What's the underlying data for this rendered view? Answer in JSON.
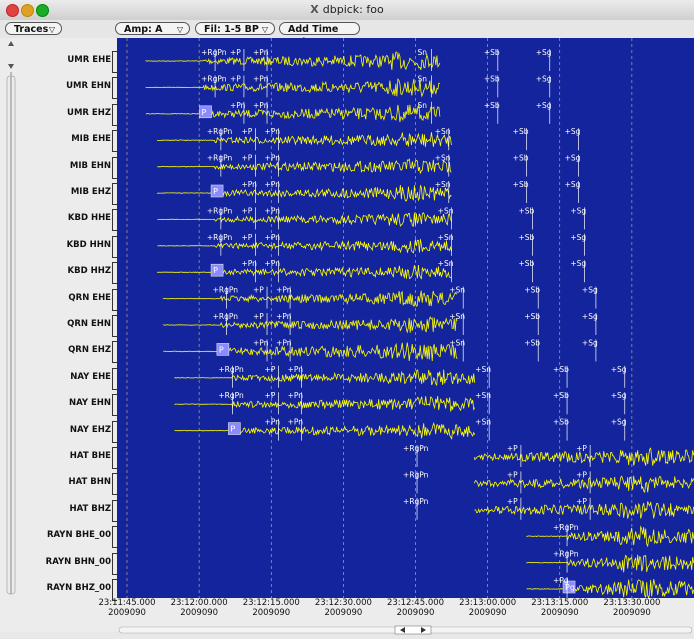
{
  "window": {
    "title": "dbpick: foo",
    "x11_glyph": "X"
  },
  "toolbar": {
    "traces_label": "Traces",
    "amp_label": "Amp: A",
    "fil_label": "Fil: 1-5 BP",
    "add_time_mark_label": "Add Time Mrk"
  },
  "colors": {
    "plot_bg": "#13249c",
    "trace": "#ffff00",
    "pick_flag": "#ffffff",
    "pick_p_box": "#8b8bff"
  },
  "channels": [
    {
      "label": "UMR EHE",
      "start": 0.05,
      "end": 0.56,
      "p": 0.15,
      "burst": 0.5,
      "amp": 1.0,
      "picks": [
        {
          "t": "+RgPn",
          "x": 0.17
        },
        {
          "t": "+P",
          "x": 0.22
        },
        {
          "t": "+Pn",
          "x": 0.26
        },
        {
          "t": "Sn",
          "x": 0.545
        },
        {
          "t": "+Sb",
          "x": 0.66
        },
        {
          "t": "+Sg",
          "x": 0.75
        }
      ]
    },
    {
      "label": "UMR EHN",
      "start": 0.05,
      "end": 0.56,
      "p": 0.15,
      "burst": 0.5,
      "amp": 1.0,
      "picks": [
        {
          "t": "+RgPn",
          "x": 0.17
        },
        {
          "t": "+P",
          "x": 0.22
        },
        {
          "t": "+Pn",
          "x": 0.26
        },
        {
          "t": "Sn",
          "x": 0.545
        },
        {
          "t": "+Sb",
          "x": 0.66
        },
        {
          "t": "+Sg",
          "x": 0.75
        }
      ]
    },
    {
      "label": "UMR EHZ",
      "start": 0.05,
      "end": 0.56,
      "p": 0.15,
      "burst": 0.5,
      "amp": 1.0,
      "box": "P",
      "picks": [
        {
          "t": "+Pn",
          "x": 0.22
        },
        {
          "t": "+Pn",
          "x": 0.26
        },
        {
          "t": "Sn",
          "x": 0.545
        },
        {
          "t": "+Sb",
          "x": 0.66
        },
        {
          "t": "+Sg",
          "x": 0.75
        }
      ]
    },
    {
      "label": "MIB EHE",
      "start": 0.07,
      "end": 0.58,
      "p": 0.17,
      "burst": 0.52,
      "amp": 0.9,
      "picks": [
        {
          "t": "+RgPn",
          "x": 0.18
        },
        {
          "t": "+P",
          "x": 0.24
        },
        {
          "t": "+Pn",
          "x": 0.28
        },
        {
          "t": "+Sn",
          "x": 0.575
        },
        {
          "t": "+Sb",
          "x": 0.71
        },
        {
          "t": "+Sg",
          "x": 0.8
        }
      ]
    },
    {
      "label": "MIB EHN",
      "start": 0.07,
      "end": 0.58,
      "p": 0.17,
      "burst": 0.52,
      "amp": 0.9,
      "picks": [
        {
          "t": "+RgPn",
          "x": 0.18
        },
        {
          "t": "+P",
          "x": 0.24
        },
        {
          "t": "+Pn",
          "x": 0.28
        },
        {
          "t": "+Sn",
          "x": 0.575
        },
        {
          "t": "+Sb",
          "x": 0.71
        },
        {
          "t": "+Sg",
          "x": 0.8
        }
      ]
    },
    {
      "label": "MIB EHZ",
      "start": 0.07,
      "end": 0.58,
      "p": 0.17,
      "burst": 0.52,
      "amp": 0.9,
      "box": "P",
      "picks": [
        {
          "t": "+Pn",
          "x": 0.24
        },
        {
          "t": "+Pn",
          "x": 0.28
        },
        {
          "t": "+Sn",
          "x": 0.575
        },
        {
          "t": "+Sb",
          "x": 0.71
        },
        {
          "t": "+Sg",
          "x": 0.8
        }
      ]
    },
    {
      "label": "KBD HHE",
      "start": 0.07,
      "end": 0.58,
      "p": 0.17,
      "burst": 0.5,
      "amp": 0.8,
      "picks": [
        {
          "t": "+RgPn",
          "x": 0.18
        },
        {
          "t": "+P",
          "x": 0.24
        },
        {
          "t": "+Pn",
          "x": 0.28
        },
        {
          "t": "+Sn",
          "x": 0.58
        },
        {
          "t": "+Sb",
          "x": 0.72
        },
        {
          "t": "+Sg",
          "x": 0.81
        }
      ]
    },
    {
      "label": "KBD HHN",
      "start": 0.07,
      "end": 0.58,
      "p": 0.17,
      "burst": 0.5,
      "amp": 0.8,
      "picks": [
        {
          "t": "+RgPn",
          "x": 0.18
        },
        {
          "t": "+P",
          "x": 0.24
        },
        {
          "t": "+Pn",
          "x": 0.28
        },
        {
          "t": "+Sn",
          "x": 0.58
        },
        {
          "t": "+Sb",
          "x": 0.72
        },
        {
          "t": "+Sg",
          "x": 0.81
        }
      ]
    },
    {
      "label": "KBD HHZ",
      "start": 0.07,
      "end": 0.58,
      "p": 0.17,
      "burst": 0.5,
      "amp": 0.8,
      "box": "P",
      "picks": [
        {
          "t": "+Pn",
          "x": 0.24
        },
        {
          "t": "+Pn",
          "x": 0.28
        },
        {
          "t": "+Sn",
          "x": 0.58
        },
        {
          "t": "+Sb",
          "x": 0.72
        },
        {
          "t": "+Sg",
          "x": 0.81
        }
      ]
    },
    {
      "label": "QRN EHE",
      "start": 0.08,
      "end": 0.59,
      "p": 0.18,
      "burst": 0.52,
      "amp": 0.9,
      "picks": [
        {
          "t": "+RgPn",
          "x": 0.19
        },
        {
          "t": "+P",
          "x": 0.26
        },
        {
          "t": "+Pn",
          "x": 0.3
        },
        {
          "t": "+Sn",
          "x": 0.6
        },
        {
          "t": "+Sb",
          "x": 0.73
        },
        {
          "t": "+Sg",
          "x": 0.83
        }
      ]
    },
    {
      "label": "QRN EHN",
      "start": 0.08,
      "end": 0.59,
      "p": 0.18,
      "burst": 0.52,
      "amp": 0.9,
      "picks": [
        {
          "t": "+RgPn",
          "x": 0.19
        },
        {
          "t": "+P",
          "x": 0.26
        },
        {
          "t": "+Pn",
          "x": 0.3
        },
        {
          "t": "+Sn",
          "x": 0.6
        },
        {
          "t": "+Sb",
          "x": 0.73
        },
        {
          "t": "+Sg",
          "x": 0.83
        }
      ]
    },
    {
      "label": "QRN EHZ",
      "start": 0.08,
      "end": 0.59,
      "p": 0.18,
      "burst": 0.52,
      "amp": 1.1,
      "box": "P",
      "picks": [
        {
          "t": "+Pn",
          "x": 0.26
        },
        {
          "t": "+Pn",
          "x": 0.3
        },
        {
          "t": "+Sn",
          "x": 0.6
        },
        {
          "t": "+Sb",
          "x": 0.73
        },
        {
          "t": "+Sg",
          "x": 0.83
        }
      ]
    },
    {
      "label": "NAY EHE",
      "start": 0.1,
      "end": 0.62,
      "p": 0.2,
      "burst": 0.55,
      "amp": 0.9,
      "picks": [
        {
          "t": "+RgPn",
          "x": 0.2
        },
        {
          "t": "+P",
          "x": 0.28
        },
        {
          "t": "+Pn",
          "x": 0.32
        },
        {
          "t": "+Sn",
          "x": 0.645
        },
        {
          "t": "+Sb",
          "x": 0.78
        },
        {
          "t": "+Sg",
          "x": 0.88
        }
      ]
    },
    {
      "label": "NAY EHN",
      "start": 0.1,
      "end": 0.62,
      "p": 0.2,
      "burst": 0.55,
      "amp": 0.9,
      "picks": [
        {
          "t": "+RgPn",
          "x": 0.2
        },
        {
          "t": "+P",
          "x": 0.28
        },
        {
          "t": "+Pn",
          "x": 0.32
        },
        {
          "t": "+Sn",
          "x": 0.645
        },
        {
          "t": "+Sb",
          "x": 0.78
        },
        {
          "t": "+Sg",
          "x": 0.88
        }
      ]
    },
    {
      "label": "NAY EHZ",
      "start": 0.1,
      "end": 0.62,
      "p": 0.2,
      "burst": 0.55,
      "amp": 0.9,
      "box": "P",
      "picks": [
        {
          "t": "+Pn",
          "x": 0.28
        },
        {
          "t": "+Pn",
          "x": 0.32
        },
        {
          "t": "+Sn",
          "x": 0.645
        },
        {
          "t": "+Sb",
          "x": 0.78
        },
        {
          "t": "+Sg",
          "x": 0.88
        }
      ]
    },
    {
      "label": "HAT BHE",
      "start": 0.62,
      "end": 1.0,
      "p": 0.62,
      "burst": 0.9,
      "amp": 1.0,
      "picks": [
        {
          "t": "+RgPn",
          "x": 0.52
        },
        {
          "t": "+P",
          "x": 0.7
        },
        {
          "t": "+P",
          "x": 0.82
        }
      ]
    },
    {
      "label": "HAT BHN",
      "start": 0.62,
      "end": 1.0,
      "p": 0.62,
      "burst": 0.9,
      "amp": 1.0,
      "picks": [
        {
          "t": "+RgPn",
          "x": 0.52
        },
        {
          "t": "+P",
          "x": 0.7
        },
        {
          "t": "+P",
          "x": 0.82
        }
      ]
    },
    {
      "label": "HAT BHZ",
      "start": 0.62,
      "end": 1.0,
      "p": 0.62,
      "burst": 0.9,
      "amp": 1.0,
      "picks": [
        {
          "t": "+RgPn",
          "x": 0.52
        },
        {
          "t": "+P",
          "x": 0.7
        },
        {
          "t": "+P",
          "x": 0.82
        }
      ]
    },
    {
      "label": "RAYN BHE_00",
      "start": 0.71,
      "end": 1.0,
      "p": 0.78,
      "burst": 0.9,
      "amp": 1.1,
      "picks": [
        {
          "t": "+RgPn",
          "x": 0.78
        }
      ]
    },
    {
      "label": "RAYN BHN_00",
      "start": 0.71,
      "end": 1.0,
      "p": 0.78,
      "burst": 0.9,
      "amp": 1.1,
      "picks": [
        {
          "t": "+RgPn",
          "x": 0.78
        }
      ]
    },
    {
      "label": "RAYN BHZ_00",
      "start": 0.71,
      "end": 1.0,
      "p": 0.78,
      "burst": 0.9,
      "amp": 1.1,
      "box": "Pg",
      "picks": [
        {
          "t": "+Pg",
          "x": 0.78
        }
      ]
    }
  ],
  "time_axis": [
    {
      "time": "23:11:45.000",
      "day": "2009090",
      "x": 0.0
    },
    {
      "time": "23:12:00.000",
      "day": "2009090",
      "x": 0.125
    },
    {
      "time": "23:12:15.000",
      "day": "2009090",
      "x": 0.25
    },
    {
      "time": "23:12:30.000",
      "day": "2009090",
      "x": 0.375
    },
    {
      "time": "23:12:45.000",
      "day": "2009090",
      "x": 0.5
    },
    {
      "time": "23:13:00.000",
      "day": "2009090",
      "x": 0.625
    },
    {
      "time": "23:13:15.000",
      "day": "2009090",
      "x": 0.75
    },
    {
      "time": "23:13:30.000",
      "day": "2009090",
      "x": 0.875
    }
  ]
}
